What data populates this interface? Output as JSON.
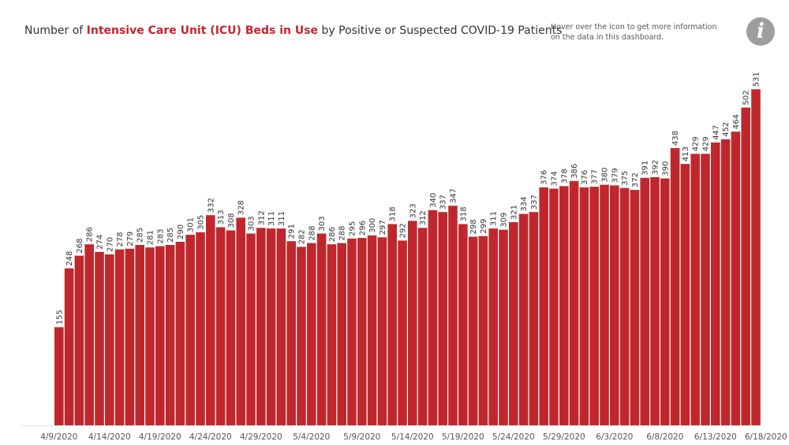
{
  "title": {
    "prefix": "Number of ",
    "highlight": "Intensive Care Unit (ICU) Beds in Use",
    "suffix": " by Positive or Suspected COVID-19 Patients"
  },
  "info": {
    "text": "Hover over the icon to get more information on the data in this dashboard.",
    "icon_symbol": "i",
    "icon": "info-icon"
  },
  "colors": {
    "bar": "#c0272d",
    "title_highlight": "#c0272d",
    "icon": "#9e9e9e"
  },
  "chart_data": {
    "type": "bar",
    "title": "Number of Intensive Care Unit (ICU) Beds in Use by Positive or Suspected COVID-19 Patients",
    "categories": [
      "4/9/2020",
      "4/10/2020",
      "4/11/2020",
      "4/12/2020",
      "4/13/2020",
      "4/14/2020",
      "4/15/2020",
      "4/16/2020",
      "4/17/2020",
      "4/18/2020",
      "4/19/2020",
      "4/20/2020",
      "4/21/2020",
      "4/22/2020",
      "4/23/2020",
      "4/24/2020",
      "4/25/2020",
      "4/26/2020",
      "4/27/2020",
      "4/28/2020",
      "4/29/2020",
      "4/30/2020",
      "5/1/2020",
      "5/2/2020",
      "5/3/2020",
      "5/4/2020",
      "5/5/2020",
      "5/6/2020",
      "5/7/2020",
      "5/8/2020",
      "5/9/2020",
      "5/10/2020",
      "5/11/2020",
      "5/12/2020",
      "5/13/2020",
      "5/14/2020",
      "5/15/2020",
      "5/16/2020",
      "5/17/2020",
      "5/18/2020",
      "5/19/2020",
      "5/20/2020",
      "5/21/2020",
      "5/22/2020",
      "5/23/2020",
      "5/24/2020",
      "5/25/2020",
      "5/26/2020",
      "5/27/2020",
      "5/28/2020",
      "5/29/2020",
      "5/30/2020",
      "5/31/2020",
      "6/1/2020",
      "6/2/2020",
      "6/3/2020",
      "6/4/2020",
      "6/5/2020",
      "6/6/2020",
      "6/7/2020",
      "6/8/2020",
      "6/9/2020",
      "6/10/2020",
      "6/11/2020",
      "6/12/2020",
      "6/13/2020",
      "6/14/2020",
      "6/15/2020",
      "6/16/2020",
      "6/17/2020"
    ],
    "values": [
      155,
      248,
      268,
      286,
      274,
      270,
      278,
      279,
      285,
      281,
      283,
      285,
      290,
      301,
      305,
      332,
      313,
      308,
      328,
      303,
      312,
      311,
      311,
      291,
      282,
      288,
      303,
      286,
      288,
      295,
      296,
      300,
      297,
      318,
      292,
      323,
      312,
      340,
      337,
      347,
      318,
      298,
      299,
      311,
      309,
      321,
      334,
      337,
      376,
      374,
      378,
      386,
      376,
      377,
      380,
      379,
      375,
      372,
      391,
      392,
      390,
      438,
      413,
      429,
      429,
      447,
      452,
      464,
      502,
      531
    ],
    "x_tick_labels": [
      "4/9/2020",
      "4/14/2020",
      "4/19/2020",
      "4/24/2020",
      "4/29/2020",
      "5/4/2020",
      "5/9/2020",
      "5/14/2020",
      "5/19/2020",
      "5/24/2020",
      "5/29/2020",
      "6/3/2020",
      "6/8/2020",
      "6/13/2020",
      "6/18/2020"
    ],
    "x_tick_start_index": 0,
    "x_tick_step": 5,
    "ylim": [
      0,
      560
    ],
    "xlabel": "",
    "ylabel": "",
    "data_labels": true,
    "grid": false,
    "legend": "none"
  }
}
